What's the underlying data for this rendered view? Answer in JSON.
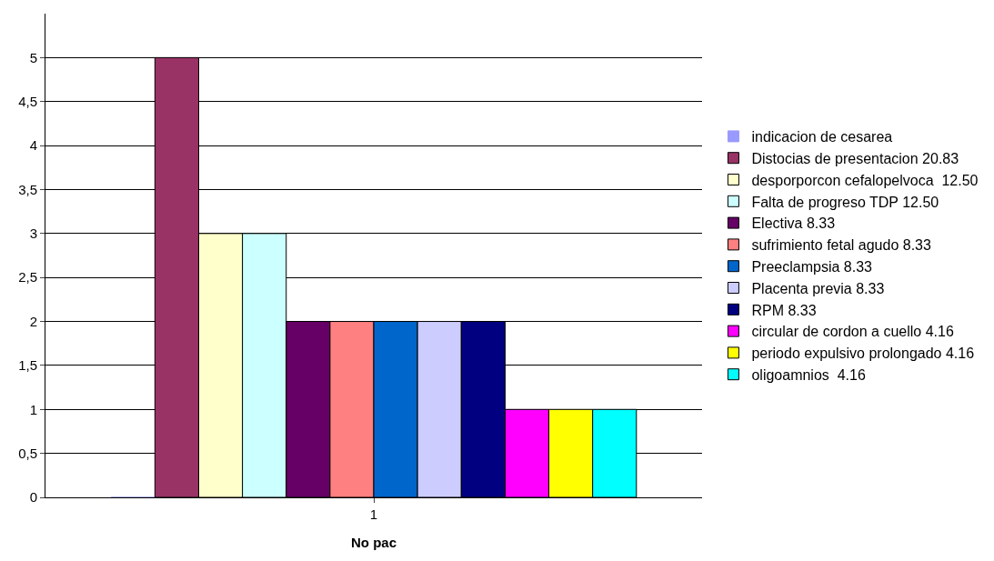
{
  "chart_data": {
    "type": "bar",
    "xlabel": "No pac",
    "categories": [
      "1"
    ],
    "ylim": [
      0,
      5.5
    ],
    "yticks": [
      0,
      {
        "value": 0.5,
        "label": "0,5"
      },
      1,
      {
        "value": 1.5,
        "label": "1,5"
      },
      2,
      {
        "value": 2.5,
        "label": "2,5"
      },
      3,
      {
        "value": 3.5,
        "label": "3,5"
      },
      4,
      {
        "value": 4.5,
        "label": "4,5"
      },
      5
    ],
    "grid": "y",
    "legend": "right",
    "series": [
      {
        "name": "indicacion de cesarea",
        "color": "#9999ff",
        "values": [
          0
        ]
      },
      {
        "name": "Distocias de presentacion 20.83",
        "color": "#993366",
        "values": [
          5
        ]
      },
      {
        "name": "desporporcon cefalopelvoca  12.50",
        "color": "#ffffcc",
        "values": [
          3
        ]
      },
      {
        "name": "Falta de progreso TDP 12.50",
        "color": "#ccffff",
        "values": [
          3
        ]
      },
      {
        "name": "Electiva 8.33",
        "color": "#660066",
        "values": [
          2
        ]
      },
      {
        "name": "sufrimiento fetal agudo 8.33",
        "color": "#ff8080",
        "values": [
          2
        ]
      },
      {
        "name": "Preeclampsia 8.33",
        "color": "#0066cc",
        "values": [
          2
        ]
      },
      {
        "name": "Placenta previa 8.33",
        "color": "#ccccff",
        "values": [
          2
        ]
      },
      {
        "name": "RPM 8.33",
        "color": "#000080",
        "values": [
          2
        ]
      },
      {
        "name": "circular de cordon a cuello 4.16",
        "color": "#ff00ff",
        "values": [
          1
        ]
      },
      {
        "name": "periodo expulsivo prolongado 4.16",
        "color": "#ffff00",
        "values": [
          1
        ]
      },
      {
        "name": "oligoamnios  4.16",
        "color": "#00ffff",
        "values": [
          1
        ]
      }
    ]
  }
}
